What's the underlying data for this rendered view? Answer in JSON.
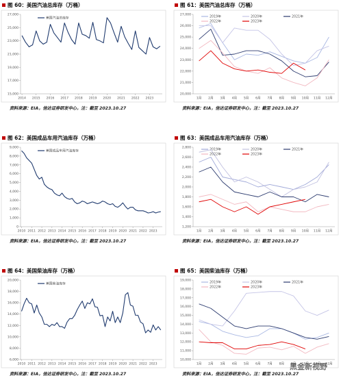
{
  "chart_data": [
    {
      "type": "line",
      "title": "图 60：美国汽油总库存（万桶）",
      "source": "资料来源：EIA，信达证券研发中心，注：截至 2023.10.27",
      "x": [
        2014,
        2014.25,
        2014.5,
        2014.75,
        2015,
        2015.25,
        2015.5,
        2015.75,
        2016,
        2016.25,
        2016.5,
        2016.75,
        2017,
        2017.25,
        2017.5,
        2017.75,
        2018,
        2018.25,
        2018.5,
        2018.75,
        2019,
        2019.25,
        2019.5,
        2019.75,
        2020,
        2020.25,
        2020.5,
        2020.75,
        2021,
        2021.25,
        2021.5,
        2021.75,
        2022,
        2022.25,
        2022.5,
        2022.75,
        2023,
        2023.25,
        2023.5,
        2023.75
      ],
      "series": [
        {
          "name": "美国汽油总库存",
          "color": "#1f3a6e",
          "values": [
            23800,
            22800,
            22100,
            22400,
            24500,
            23000,
            22500,
            22800,
            25500,
            24200,
            23500,
            22800,
            25700,
            24300,
            23200,
            22500,
            25700,
            24000,
            23800,
            23400,
            25800,
            23200,
            23000,
            22700,
            26500,
            25700,
            24200,
            22800,
            25200,
            23600,
            22600,
            21700,
            24500,
            22000,
            21500,
            21000,
            23500,
            22100,
            21800,
            22200
          ]
        }
      ],
      "xlim": [
        2013.9,
        2023.9
      ],
      "xticks": [
        2014,
        2015,
        2016,
        2017,
        2018,
        2019,
        2020,
        2021,
        2022,
        2023
      ],
      "ylim": [
        15000,
        27000
      ],
      "yticks": [
        {
          "value": 15000,
          "label": "15,000"
        },
        {
          "value": 17000,
          "label": "17,000"
        },
        {
          "value": 19000,
          "label": "19,000"
        },
        {
          "value": 21000,
          "label": "21,000"
        },
        {
          "value": 23000,
          "label": "23,000"
        },
        {
          "value": 25000,
          "label": "25,000"
        },
        {
          "value": 27000,
          "label": "27,000"
        }
      ],
      "grid": false
    },
    {
      "type": "line",
      "title": "图 61：美国汽油总库存（万桶）",
      "source": "资料来源：EIA，信达证券研发中心，注：截至 2023.10.27",
      "categories": [
        "1月",
        "2月",
        "3月",
        "4月",
        "5月",
        "6月",
        "7月",
        "8月",
        "9月",
        "10月",
        "11月",
        "12月"
      ],
      "series": [
        {
          "name": "2019年",
          "color": "#a9b8e3",
          "values": [
            25800,
            26200,
            24500,
            23000,
            23500,
            23400,
            23700,
            23300,
            22900,
            22700,
            23200,
            25000
          ]
        },
        {
          "name": "2020年",
          "color": "#c4c4e6",
          "values": [
            26000,
            26000,
            24500,
            25800,
            25600,
            25600,
            24800,
            23500,
            22500,
            22700,
            23800,
            24200
          ]
        },
        {
          "name": "2021年",
          "color": "#2b3a6e",
          "values": [
            24800,
            25700,
            23400,
            23500,
            23800,
            23800,
            23500,
            22900,
            22000,
            21500,
            21600,
            22800
          ]
        },
        {
          "name": "2022年",
          "color": "#f2b8c0",
          "values": [
            24000,
            24700,
            23600,
            22400,
            22000,
            21800,
            22300,
            21400,
            21000,
            20700,
            21400,
            23000
          ]
        },
        {
          "name": "2023年",
          "color": "#e00000",
          "values": [
            22900,
            23800,
            22700,
            22200,
            22000,
            22100,
            21900,
            21800,
            22700,
            22100,
            null,
            null
          ]
        }
      ],
      "ylim": [
        20000,
        27000
      ],
      "yticks": [
        {
          "value": 20000,
          "label": "20,000"
        },
        {
          "value": 21000,
          "label": "21,000"
        },
        {
          "value": 22000,
          "label": "22,000"
        },
        {
          "value": 23000,
          "label": "23,000"
        },
        {
          "value": 24000,
          "label": "24,000"
        },
        {
          "value": 25000,
          "label": "25,000"
        },
        {
          "value": 26000,
          "label": "26,000"
        },
        {
          "value": 27000,
          "label": "27,000"
        }
      ],
      "grid": false
    },
    {
      "type": "line",
      "title": "图 62：美国成品车用汽油库存（万桶）",
      "source": "资料来源：EIA，信达证券研发中心，注：截至 2023.10.27",
      "x": [
        2010,
        2010.25,
        2010.5,
        2010.75,
        2011,
        2011.25,
        2011.5,
        2011.75,
        2012,
        2012.25,
        2012.5,
        2012.75,
        2013,
        2013.25,
        2013.5,
        2013.75,
        2014,
        2014.25,
        2014.5,
        2014.75,
        2015,
        2015.25,
        2015.5,
        2015.75,
        2016,
        2016.25,
        2016.5,
        2016.75,
        2017,
        2017.25,
        2017.5,
        2017.75,
        2018,
        2018.25,
        2018.5,
        2018.75,
        2019,
        2019.25,
        2019.5,
        2019.75,
        2020,
        2020.25,
        2020.5,
        2020.75,
        2021,
        2021.25,
        2021.5,
        2021.75,
        2022,
        2022.25,
        2022.5,
        2022.75,
        2023,
        2023.25,
        2023.5,
        2023.75
      ],
      "series": [
        {
          "name": "美国成品车用汽油库存",
          "color": "#1f3a6e",
          "values": [
            8600,
            8300,
            7800,
            7500,
            7200,
            6500,
            5800,
            5400,
            5600,
            4800,
            4500,
            4300,
            4200,
            3800,
            3600,
            3500,
            3800,
            3400,
            3200,
            3100,
            3200,
            2800,
            2600,
            2700,
            2900,
            2800,
            2600,
            2700,
            2800,
            2700,
            2600,
            2700,
            2900,
            2800,
            2600,
            2500,
            2600,
            2300,
            2200,
            2400,
            2700,
            2300,
            2000,
            2200,
            2200,
            1900,
            1800,
            1800,
            1800,
            1700,
            1550,
            1600,
            1700,
            1550,
            1650,
            1700
          ]
        }
      ],
      "xlim": [
        2009.9,
        2023.9
      ],
      "xticks": [
        2010,
        2011,
        2012,
        2013,
        2014,
        2015,
        2016,
        2017,
        2018,
        2019,
        2020,
        2021,
        2022,
        2023
      ],
      "ylim": [
        0,
        9000
      ],
      "yticks": [
        0,
        {
          "value": 1000,
          "label": "1,000"
        },
        {
          "value": 2000,
          "label": "2,000"
        },
        {
          "value": 3000,
          "label": "3,000"
        },
        {
          "value": 4000,
          "label": "4,000"
        },
        {
          "value": 5000,
          "label": "5,000"
        },
        {
          "value": 6000,
          "label": "6,000"
        },
        {
          "value": 7000,
          "label": "7,000"
        },
        {
          "value": 8000,
          "label": "8,000"
        },
        {
          "value": 9000,
          "label": "9,000"
        }
      ],
      "grid": false
    },
    {
      "type": "line",
      "title": "图 63：美国成品车用汽油库存（万桶）",
      "source": "资料来源：EIA，信达证券研发中心，注：截至 2023.10.27",
      "categories": [
        "1月",
        "2月",
        "3月",
        "4月",
        "5月",
        "6月",
        "7月",
        "8月",
        "9月",
        "10月",
        "11月",
        "12月"
      ],
      "series": [
        {
          "name": "2019年",
          "color": "#9fa8d8",
          "values": [
            2500,
            2600,
            2200,
            2150,
            2100,
            2000,
            2050,
            2000,
            1950,
            2050,
            2200,
            2450
          ]
        },
        {
          "name": "2020年",
          "color": "#c0c0e0",
          "values": [
            2700,
            2750,
            2400,
            2100,
            2200,
            2100,
            1950,
            1800,
            1950,
            2000,
            2100,
            2500
          ]
        },
        {
          "name": "2021年",
          "color": "#2b3a6e",
          "values": [
            2300,
            2400,
            2100,
            1900,
            1850,
            1800,
            1900,
            1800,
            1800,
            1700,
            1850,
            1800
          ]
        },
        {
          "name": "2022年",
          "color": "#f2b8c0",
          "values": [
            1800,
            1850,
            1750,
            1650,
            1700,
            1500,
            1600,
            1550,
            1500,
            1500,
            1600,
            1650
          ]
        },
        {
          "name": "2023年",
          "color": "#e00000",
          "values": [
            1700,
            1750,
            1600,
            1500,
            1600,
            1450,
            1600,
            1650,
            1700,
            1750,
            null,
            null
          ]
        }
      ],
      "ylim": [
        1200,
        2800
      ],
      "yticks": [
        {
          "value": 1200,
          "label": "1,200"
        },
        {
          "value": 1400,
          "label": "1,400"
        },
        {
          "value": 1600,
          "label": "1,600"
        },
        {
          "value": 1800,
          "label": "1,800"
        },
        {
          "value": 2000,
          "label": "2,000"
        },
        {
          "value": 2200,
          "label": "2,200"
        },
        {
          "value": 2400,
          "label": "2,400"
        },
        {
          "value": 2600,
          "label": "2,600"
        },
        {
          "value": 2800,
          "label": "2,800"
        }
      ],
      "grid": false
    },
    {
      "type": "line",
      "title": "图 64：美国柴油库存（万桶）",
      "source": "资料来源：EIA，信达证券研发中心，注：截至 2023.10.27",
      "x": [
        2010,
        2010.25,
        2010.5,
        2010.75,
        2011,
        2011.25,
        2011.5,
        2011.75,
        2012,
        2012.25,
        2012.5,
        2012.75,
        2013,
        2013.25,
        2013.5,
        2013.75,
        2014,
        2014.25,
        2014.5,
        2014.75,
        2015,
        2015.25,
        2015.5,
        2015.75,
        2016,
        2016.25,
        2016.5,
        2016.75,
        2017,
        2017.25,
        2017.5,
        2017.75,
        2018,
        2018.25,
        2018.5,
        2018.75,
        2019,
        2019.25,
        2019.5,
        2019.75,
        2020,
        2020.25,
        2020.5,
        2020.75,
        2021,
        2021.25,
        2021.5,
        2021.75,
        2022,
        2022.25,
        2022.5,
        2022.75,
        2023,
        2023.25,
        2023.5,
        2023.75
      ],
      "series": [
        {
          "name": "美国柴油库存",
          "color": "#1f3a6e",
          "values": [
            14500,
            15800,
            16800,
            16000,
            15800,
            14200,
            15600,
            14200,
            13500,
            12200,
            12200,
            11800,
            12200,
            12000,
            12500,
            11800,
            11800,
            11500,
            12600,
            13200,
            13200,
            13800,
            14800,
            15600,
            16300,
            15000,
            16000,
            15800,
            16700,
            15300,
            15200,
            13700,
            13800,
            11800,
            13500,
            12800,
            14500,
            12500,
            13500,
            12500,
            14200,
            17400,
            17800,
            15600,
            15400,
            13800,
            13800,
            12600,
            12300,
            10700,
            11200,
            10800,
            12100,
            11200,
            11800,
            11200
          ]
        }
      ],
      "xlim": [
        2009.9,
        2023.9
      ],
      "xticks": [
        2010,
        2011,
        2012,
        2013,
        2014,
        2015,
        2016,
        2017,
        2018,
        2019,
        2020,
        2021,
        2022,
        2023
      ],
      "ylim": [
        6000,
        20000
      ],
      "yticks": [
        {
          "value": 6000,
          "label": "6,000"
        },
        {
          "value": 8000,
          "label": "8,000"
        },
        {
          "value": 10000,
          "label": "10,000"
        },
        {
          "value": 12000,
          "label": "12,000"
        },
        {
          "value": 14000,
          "label": "14,000"
        },
        {
          "value": 16000,
          "label": "16,000"
        },
        {
          "value": 18000,
          "label": "18,000"
        },
        {
          "value": 20000,
          "label": "20,000"
        }
      ],
      "grid": false
    },
    {
      "type": "line",
      "title": "图 65：美国柴油库存（万桶）",
      "source": "资料来源：EIA，信达证券研发中心，注：截至 2023.10.27",
      "categories": [
        "1月",
        "2月",
        "3月",
        "4月",
        "5月",
        "6月",
        "7月",
        "8月",
        "9月",
        "10月",
        "11月",
        "12月"
      ],
      "series": [
        {
          "name": "2019年",
          "color": "#a9b8e3",
          "values": [
            14300,
            14000,
            13200,
            12800,
            12500,
            12700,
            13500,
            13500,
            13000,
            12300,
            12500,
            13000
          ]
        },
        {
          "name": "2020年",
          "color": "#c4c4e6",
          "values": [
            14500,
            14000,
            13800,
            15500,
            17500,
            17600,
            17700,
            17700,
            17200,
            15500,
            15000,
            15600
          ]
        },
        {
          "name": "2021年",
          "color": "#2b3a6e",
          "values": [
            16300,
            15800,
            14800,
            13800,
            13500,
            13800,
            13800,
            13500,
            13000,
            12500,
            12300,
            12600
          ]
        },
        {
          "name": "2022年",
          "color": "#f2b8c0",
          "values": [
            13400,
            12000,
            11600,
            10700,
            10600,
            11300,
            11400,
            11100,
            11500,
            10700,
            11400,
            11800
          ]
        },
        {
          "name": "2023年",
          "color": "#e00000",
          "values": [
            12000,
            11900,
            11900,
            11200,
            11200,
            11600,
            11700,
            12000,
            11700,
            11200,
            null,
            null
          ]
        }
      ],
      "ylim": [
        10000,
        19000
      ],
      "yticks": [
        {
          "value": 10000,
          "label": "10,000"
        },
        {
          "value": 11000,
          "label": "11,000"
        },
        {
          "value": 12000,
          "label": "12,000"
        },
        {
          "value": 13000,
          "label": "13,000"
        },
        {
          "value": 14000,
          "label": "14,000"
        },
        {
          "value": 15000,
          "label": "15,000"
        },
        {
          "value": 16000,
          "label": "16,000"
        },
        {
          "value": 17000,
          "label": "17,000"
        },
        {
          "value": 18000,
          "label": "18,000"
        },
        {
          "value": 19000,
          "label": "19,000"
        }
      ],
      "grid": false
    }
  ],
  "watermark": "黑金新视野"
}
